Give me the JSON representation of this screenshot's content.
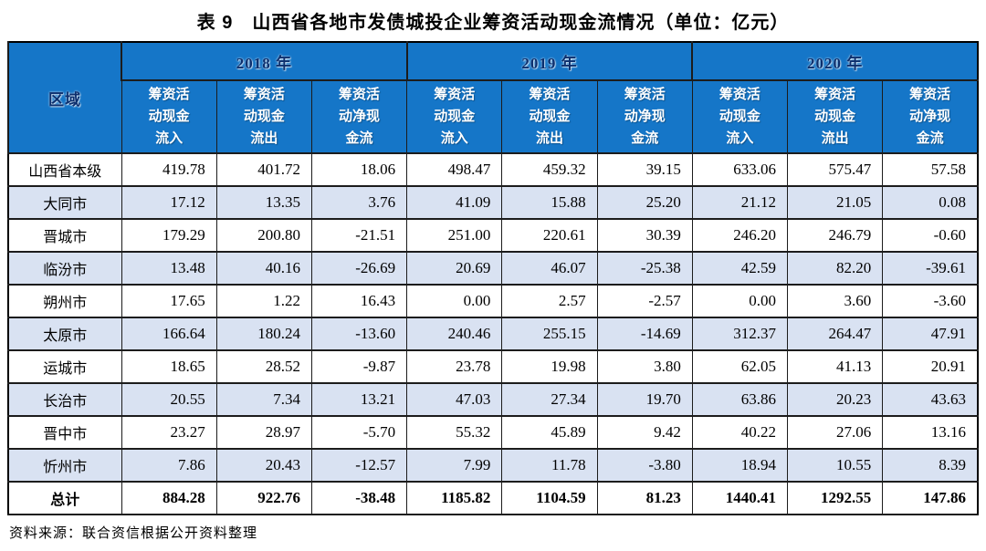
{
  "title": "表 9　山西省各地市发债城投企业筹资活动现金流情况（单位：亿元）",
  "table": {
    "region_header": "区域",
    "year_groups": [
      {
        "label": "2018 年",
        "columns": [
          "筹资活\n动现金\n流入",
          "筹资活\n动现金\n流出",
          "筹资活\n动净现\n金流"
        ]
      },
      {
        "label": "2019 年",
        "columns": [
          "筹资活\n动现金\n流入",
          "筹资活\n动现金\n流出",
          "筹资活\n动净现\n金流"
        ]
      },
      {
        "label": "2020 年",
        "columns": [
          "筹资活\n动现金\n流入",
          "筹资活\n动现金\n流出",
          "筹资活\n动净现\n金流"
        ]
      }
    ],
    "rows": [
      {
        "region": "山西省本级",
        "values": [
          "419.78",
          "401.72",
          "18.06",
          "498.47",
          "459.32",
          "39.15",
          "633.06",
          "575.47",
          "57.58"
        ]
      },
      {
        "region": "大同市",
        "values": [
          "17.12",
          "13.35",
          "3.76",
          "41.09",
          "15.88",
          "25.20",
          "21.12",
          "21.05",
          "0.08"
        ]
      },
      {
        "region": "晋城市",
        "values": [
          "179.29",
          "200.80",
          "-21.51",
          "251.00",
          "220.61",
          "30.39",
          "246.20",
          "246.79",
          "-0.60"
        ]
      },
      {
        "region": "临汾市",
        "values": [
          "13.48",
          "40.16",
          "-26.69",
          "20.69",
          "46.07",
          "-25.38",
          "42.59",
          "82.20",
          "-39.61"
        ]
      },
      {
        "region": "朔州市",
        "values": [
          "17.65",
          "1.22",
          "16.43",
          "0.00",
          "2.57",
          "-2.57",
          "0.00",
          "3.60",
          "-3.60"
        ]
      },
      {
        "region": "太原市",
        "values": [
          "166.64",
          "180.24",
          "-13.60",
          "240.46",
          "255.15",
          "-14.69",
          "312.37",
          "264.47",
          "47.91"
        ]
      },
      {
        "region": "运城市",
        "values": [
          "18.65",
          "28.52",
          "-9.87",
          "23.78",
          "19.98",
          "3.80",
          "62.05",
          "41.13",
          "20.91"
        ]
      },
      {
        "region": "长治市",
        "values": [
          "20.55",
          "7.34",
          "13.21",
          "47.03",
          "27.34",
          "19.70",
          "63.86",
          "20.23",
          "43.63"
        ]
      },
      {
        "region": "晋中市",
        "values": [
          "23.27",
          "28.97",
          "-5.70",
          "55.32",
          "45.89",
          "9.42",
          "40.22",
          "27.06",
          "13.16"
        ]
      },
      {
        "region": "忻州市",
        "values": [
          "7.86",
          "20.43",
          "-12.57",
          "7.99",
          "11.78",
          "-3.80",
          "18.94",
          "10.55",
          "8.39"
        ]
      }
    ],
    "total_row": {
      "region": "总计",
      "values": [
        "884.28",
        "922.76",
        "-38.48",
        "1185.82",
        "1104.59",
        "81.23",
        "1440.41",
        "1292.55",
        "147.86"
      ]
    }
  },
  "footer": {
    "source": "资料来源：联合资信根据公开资料整理"
  },
  "colors": {
    "header_background": "#1576c8",
    "stripe_row_background": "#d9e2f2",
    "year_label_text": "#0c2f6e",
    "header_text": "#ffffff",
    "border": "#1c1c1c"
  }
}
